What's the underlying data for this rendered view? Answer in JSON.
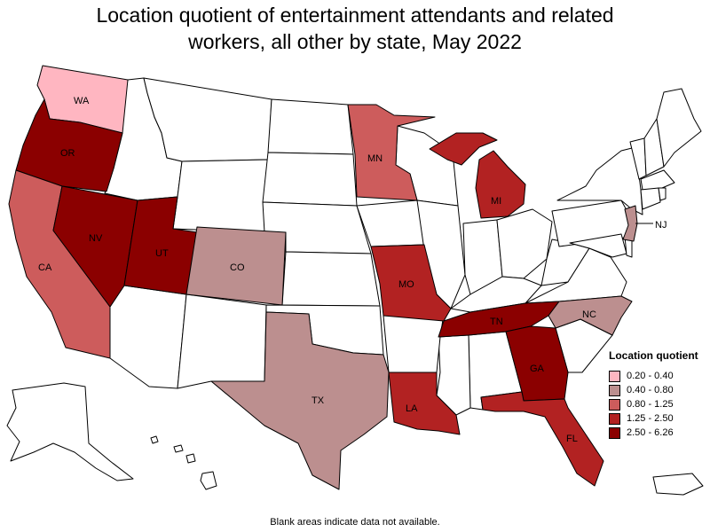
{
  "title": {
    "line1": "Location quotient of entertainment attendants and related",
    "line2": "workers, all other by state, May 2022"
  },
  "legend": {
    "title": "Location quotient",
    "items": [
      {
        "label": "0.20 - 0.40",
        "color": "#ffb6c1"
      },
      {
        "label": "0.40 - 0.80",
        "color": "#bc8f8f"
      },
      {
        "label": "0.80 - 1.25",
        "color": "#cd5c5c"
      },
      {
        "label": "1.25 - 2.50",
        "color": "#b22222"
      },
      {
        "label": "2.50 - 6.26",
        "color": "#8b0000"
      }
    ]
  },
  "colors": {
    "no_data": "#ffffff",
    "border": "#000000"
  },
  "states": {
    "WA": {
      "label": "WA",
      "class": 0
    },
    "OR": {
      "label": "OR",
      "class": 4
    },
    "CA": {
      "label": "CA",
      "class": 2
    },
    "NV": {
      "label": "NV",
      "class": 4
    },
    "UT": {
      "label": "UT",
      "class": 4
    },
    "CO": {
      "label": "CO",
      "class": 1
    },
    "TX": {
      "label": "TX",
      "class": 1
    },
    "MN": {
      "label": "MN",
      "class": 2
    },
    "MO": {
      "label": "MO",
      "class": 3
    },
    "LA": {
      "label": "LA",
      "class": 3
    },
    "MI": {
      "label": "MI",
      "class": 3
    },
    "TN": {
      "label": "TN",
      "class": 4
    },
    "GA": {
      "label": "GA",
      "class": 4
    },
    "FL": {
      "label": "FL",
      "class": 3
    },
    "NC": {
      "label": "NC",
      "class": 1
    },
    "NJ": {
      "label": "NJ",
      "class": 1
    }
  },
  "footnote": "Blank areas indicate data not available."
}
